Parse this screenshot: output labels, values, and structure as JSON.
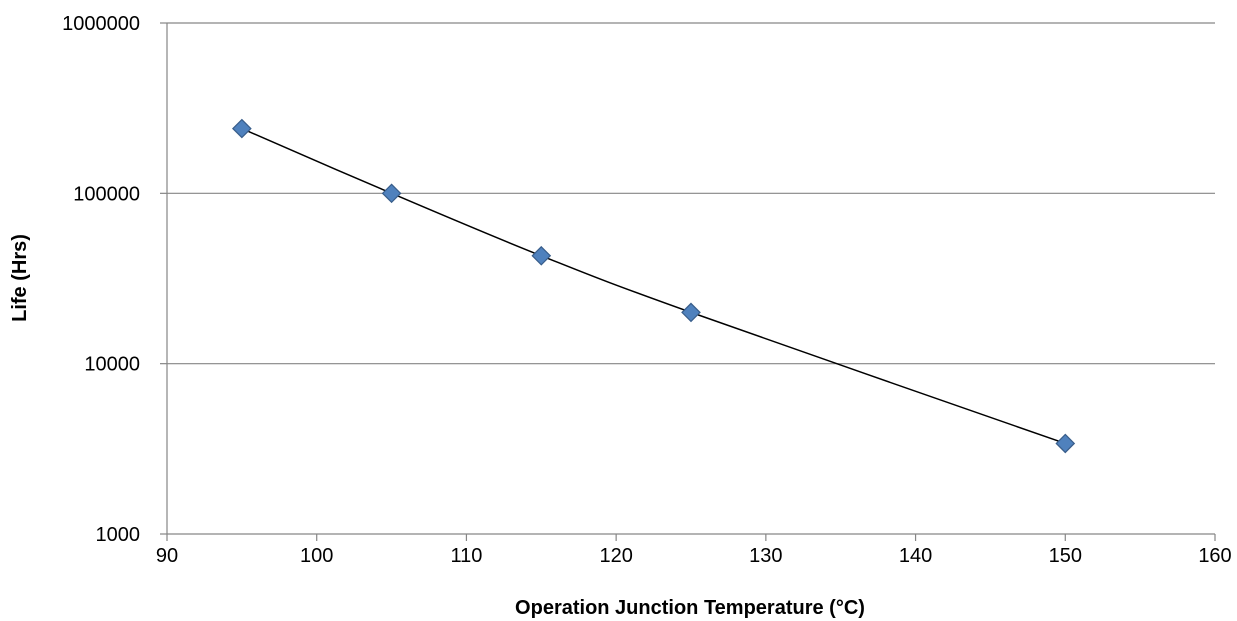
{
  "chart_data": {
    "type": "scatter",
    "title": "",
    "xlabel": "Operation Junction Temperature (°C)",
    "ylabel": "Life (Hrs)",
    "xlim": [
      90,
      160
    ],
    "ylim": [
      1000,
      1000000
    ],
    "y_scale": "log",
    "x_ticks": [
      90,
      100,
      110,
      120,
      130,
      140,
      150,
      160
    ],
    "y_ticks": [
      1000,
      10000,
      100000,
      1000000
    ],
    "grid": {
      "horizontal": true,
      "vertical": false
    },
    "legend": "none",
    "series": [
      {
        "points": [
          {
            "x": 95,
            "y": 240000
          },
          {
            "x": 105,
            "y": 100000
          },
          {
            "x": 115,
            "y": 43000
          },
          {
            "x": 125,
            "y": 20000
          },
          {
            "x": 150,
            "y": 3400
          }
        ],
        "marker": "diamond",
        "color": "#4f81bd",
        "marker_edge_color": "#385d8a",
        "trendline": {
          "type": "smooth",
          "color": "#000000"
        }
      }
    ],
    "gridline_color": "#868686",
    "axis_color": "#868686"
  }
}
